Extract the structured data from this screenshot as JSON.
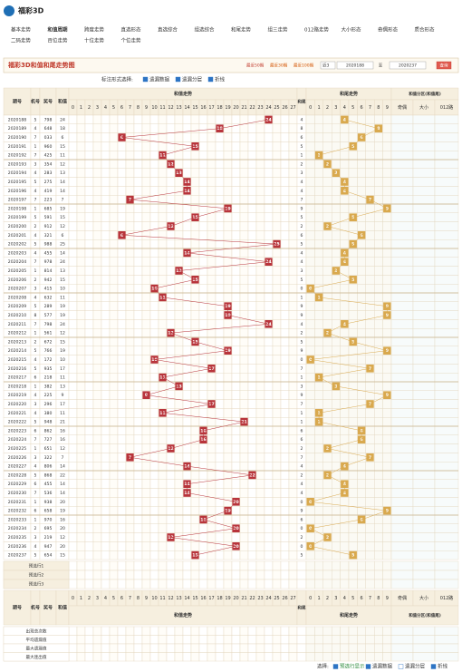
{
  "header": {
    "logo": "福彩3D",
    "nav": [
      "基本走势",
      "和值周期",
      "跨度走势",
      "直选形态",
      "直选综合",
      "组选综合",
      "和尾走势",
      "组三走势",
      "012路走势",
      "大小形态",
      "奇偶形态",
      "质合形态",
      "二码走势",
      "百位走势",
      "十位走势",
      "个位走势"
    ]
  },
  "toolbar": {
    "title": "福彩3D和值和尾走势图",
    "periods": [
      "最近50期",
      "最近30期",
      "最近100期"
    ],
    "select": "近3",
    "from": "2020188",
    "to_label": "至",
    "to": "2020237",
    "button": "查询"
  },
  "options": {
    "label": "标注形式选择:",
    "items": [
      "遗漏数据",
      "遗漏分层",
      "折线"
    ]
  },
  "table": {
    "headers": {
      "issue": "期号",
      "machine": "机号",
      "number": "奖号",
      "sum": "和值",
      "sum_trend": "和值走势",
      "tail": "和尾",
      "tail_trend": "和尾走势",
      "zone": "和值分区(和值尾)",
      "zone_cols": [
        "奇偶",
        "大小",
        "012路"
      ]
    },
    "sum_cols": [
      0,
      1,
      2,
      3,
      4,
      5,
      6,
      7,
      8,
      9,
      10,
      11,
      12,
      13,
      14,
      15,
      16,
      17,
      18,
      19,
      20,
      21,
      22,
      23,
      24,
      25,
      26,
      27
    ],
    "tail_cols": [
      0,
      1,
      2,
      3,
      4,
      5,
      6,
      7,
      8,
      9
    ],
    "rows": [
      [
        "2020188",
        5,
        "798",
        24,
        4
      ],
      [
        "2020189",
        4,
        "648",
        18,
        8
      ],
      [
        "2020190",
        7,
        "033",
        6,
        6
      ],
      [
        "2020191",
        1,
        "960",
        15,
        5
      ],
      [
        "2020192",
        7,
        "425",
        11,
        1
      ],
      [
        "2020193",
        3,
        "354",
        12,
        2
      ],
      [
        "2020194",
        4,
        "283",
        13,
        3
      ],
      [
        "2020195",
        5,
        "275",
        14,
        4
      ],
      [
        "2020196",
        4,
        "419",
        14,
        4
      ],
      [
        "2020197",
        7,
        "223",
        7,
        7
      ],
      [
        "2020198",
        1,
        "685",
        19,
        9
      ],
      [
        "2020199",
        5,
        "591",
        15,
        5
      ],
      [
        "2020200",
        2,
        "912",
        12,
        2
      ],
      [
        "2020201",
        4,
        "321",
        6,
        6
      ],
      [
        "2020202",
        5,
        "988",
        25,
        5
      ],
      [
        "2020203",
        4,
        "455",
        14,
        4
      ],
      [
        "2020204",
        7,
        "978",
        24,
        4
      ],
      [
        "2020205",
        1,
        "814",
        13,
        3
      ],
      [
        "2020206",
        2,
        "942",
        15,
        5
      ],
      [
        "2020207",
        3,
        "415",
        10,
        0
      ],
      [
        "2020208",
        4,
        "632",
        11,
        1
      ],
      [
        "2020209",
        5,
        "289",
        19,
        9
      ],
      [
        "2020210",
        8,
        "577",
        19,
        9
      ],
      [
        "2020211",
        7,
        "798",
        24,
        4
      ],
      [
        "2020212",
        1,
        "561",
        12,
        2
      ],
      [
        "2020213",
        2,
        "672",
        15,
        5
      ],
      [
        "2020214",
        5,
        "766",
        19,
        9
      ],
      [
        "2020215",
        4,
        "172",
        10,
        0
      ],
      [
        "2020216",
        5,
        "935",
        17,
        7
      ],
      [
        "2020217",
        6,
        "218",
        11,
        1
      ],
      [
        "2020218",
        1,
        "382",
        13,
        3
      ],
      [
        "2020219",
        4,
        "225",
        9,
        9
      ],
      [
        "2020220",
        3,
        "296",
        17,
        7
      ],
      [
        "2020221",
        4,
        "380",
        11,
        1
      ],
      [
        "2020222",
        5,
        "948",
        21,
        1
      ],
      [
        "2020223",
        6,
        "862",
        16,
        6
      ],
      [
        "2020224",
        7,
        "727",
        16,
        6
      ],
      [
        "2020225",
        1,
        "651",
        12,
        2
      ],
      [
        "2020226",
        3,
        "322",
        7,
        7
      ],
      [
        "2020227",
        4,
        "806",
        14,
        4
      ],
      [
        "2020228",
        5,
        "868",
        22,
        2
      ],
      [
        "2020229",
        6,
        "455",
        14,
        4
      ],
      [
        "2020230",
        7,
        "536",
        14,
        4
      ],
      [
        "2020231",
        1,
        "938",
        20,
        0
      ],
      [
        "2020232",
        6,
        "658",
        19,
        9
      ],
      [
        "2020233",
        1,
        "970",
        16,
        6
      ],
      [
        "2020234",
        2,
        "695",
        20,
        0
      ],
      [
        "2020235",
        3,
        "219",
        12,
        2
      ],
      [
        "2020236",
        4,
        "947",
        20,
        0
      ],
      [
        "2020237",
        5,
        "654",
        15,
        5
      ]
    ],
    "preselect": [
      "预选行1",
      "预选行2",
      "预选行3"
    ],
    "stats": [
      "出现总次数",
      "平均遗漏值",
      "最大遗漏值",
      "最大连出值"
    ]
  },
  "footer": {
    "label": "选择:",
    "items": [
      "预选行显示",
      "遗漏数据",
      "遗漏分层",
      "折线"
    ]
  }
}
